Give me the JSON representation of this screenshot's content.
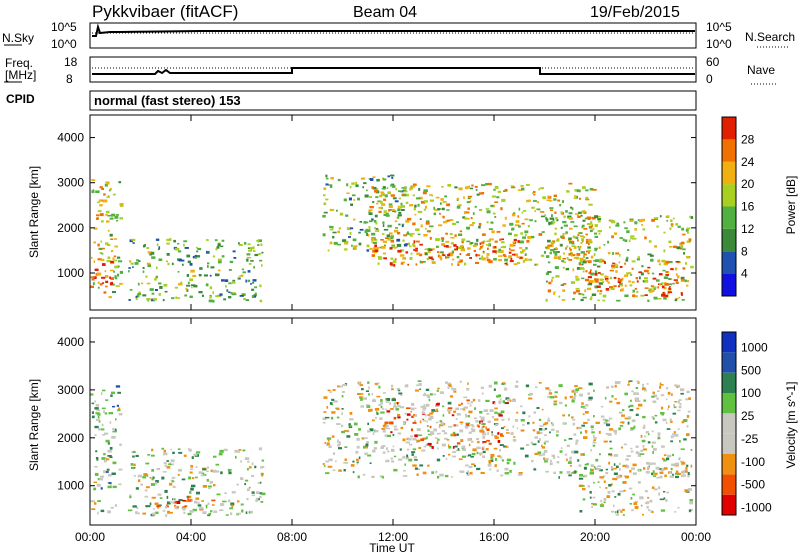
{
  "header": {
    "station": "Pykkvibaer (fitACF)",
    "beam": "Beam 04",
    "date": "19/Feb/2015"
  },
  "noise_panel": {
    "left_label": "N.Sky",
    "left_ticks": [
      "10^5",
      "10^0"
    ],
    "right_label": "N.Search",
    "right_ticks": [
      "10^5",
      "10^0"
    ]
  },
  "freq_panel": {
    "left_label_line1": "Freq.",
    "left_label_line2": "[MHz]",
    "left_ticks": [
      "18",
      "8"
    ],
    "right_label": "Nave",
    "right_ticks": [
      "60",
      "0"
    ]
  },
  "cpid": {
    "label": "CPID",
    "text": "normal (fast stereo) 153"
  },
  "x_axis": {
    "label": "Time UT",
    "ticks": [
      "00:00",
      "04:00",
      "08:00",
      "12:00",
      "16:00",
      "20:00",
      "00:00"
    ],
    "range_hours": [
      0,
      24
    ]
  },
  "colors": {
    "power": [
      "#1010e0",
      "#2050b0",
      "#3a8a3a",
      "#50b040",
      "#a8d020",
      "#f0b010",
      "#f07000",
      "#e02000"
    ],
    "velocity": [
      "#e00000",
      "#f05000",
      "#f09010",
      "#c8c8c0",
      "#c8c8c0",
      "#60c040",
      "#2e8050",
      "#2050a8",
      "#1030c0"
    ]
  },
  "chart_data": [
    {
      "type": "heatmap",
      "title": "",
      "ylabel": "Slant Range [km]",
      "xlabel": "",
      "x_range_hours": [
        0,
        24
      ],
      "ylim": [
        180,
        4500
      ],
      "yticks": [
        "1000",
        "2000",
        "3000",
        "4000"
      ],
      "colorbar": {
        "label": "Power [dB]",
        "ticks": [
          "4",
          "8",
          "12",
          "16",
          "20",
          "24",
          "28"
        ],
        "range": [
          0,
          32
        ]
      },
      "regions": [
        {
          "t0": 0.0,
          "t1": 1.2,
          "r0": 450,
          "r1": 3100,
          "level": 0.6
        },
        {
          "t0": 0.0,
          "t1": 1.0,
          "r0": 700,
          "r1": 1400,
          "level": 0.9
        },
        {
          "t0": 1.5,
          "t1": 6.8,
          "r0": 400,
          "r1": 1800,
          "level": 0.4
        },
        {
          "t0": 9.2,
          "t1": 12.5,
          "r0": 1500,
          "r1": 3200,
          "level": 0.45
        },
        {
          "t0": 11.0,
          "t1": 20.0,
          "r0": 1200,
          "r1": 3000,
          "level": 0.6
        },
        {
          "t0": 11.0,
          "t1": 17.0,
          "r0": 1200,
          "r1": 1800,
          "level": 0.85
        },
        {
          "t0": 18.0,
          "t1": 23.8,
          "r0": 400,
          "r1": 2300,
          "level": 0.55
        },
        {
          "t0": 19.5,
          "t1": 23.5,
          "r0": 500,
          "r1": 1300,
          "level": 0.85
        }
      ]
    },
    {
      "type": "heatmap",
      "title": "",
      "ylabel": "Slant Range [km]",
      "xlabel": "Time UT",
      "x_range_hours": [
        0,
        24
      ],
      "ylim": [
        180,
        4500
      ],
      "yticks": [
        "1000",
        "2000",
        "3000",
        "4000"
      ],
      "colorbar": {
        "label": "Velocity [m s^-1]",
        "ticks": [
          "1000",
          "500",
          "100",
          "25",
          "-25",
          "-100",
          "-500",
          "-1000"
        ],
        "range": [
          -1000,
          1000
        ]
      },
      "regions": [
        {
          "t0": 0.0,
          "t1": 1.2,
          "r0": 450,
          "r1": 3100,
          "level": 0.55
        },
        {
          "t0": 1.5,
          "t1": 6.8,
          "r0": 400,
          "r1": 1800,
          "level": 0.5
        },
        {
          "t0": 2.5,
          "t1": 5.5,
          "r0": 450,
          "r1": 800,
          "level": 0.3
        },
        {
          "t0": 9.2,
          "t1": 23.8,
          "r0": 1200,
          "r1": 3200,
          "level": 0.48
        },
        {
          "t0": 11.5,
          "t1": 16.5,
          "r0": 1800,
          "r1": 2800,
          "level": 0.3
        },
        {
          "t0": 19.0,
          "t1": 23.8,
          "r0": 400,
          "r1": 1500,
          "level": 0.5
        }
      ]
    }
  ]
}
